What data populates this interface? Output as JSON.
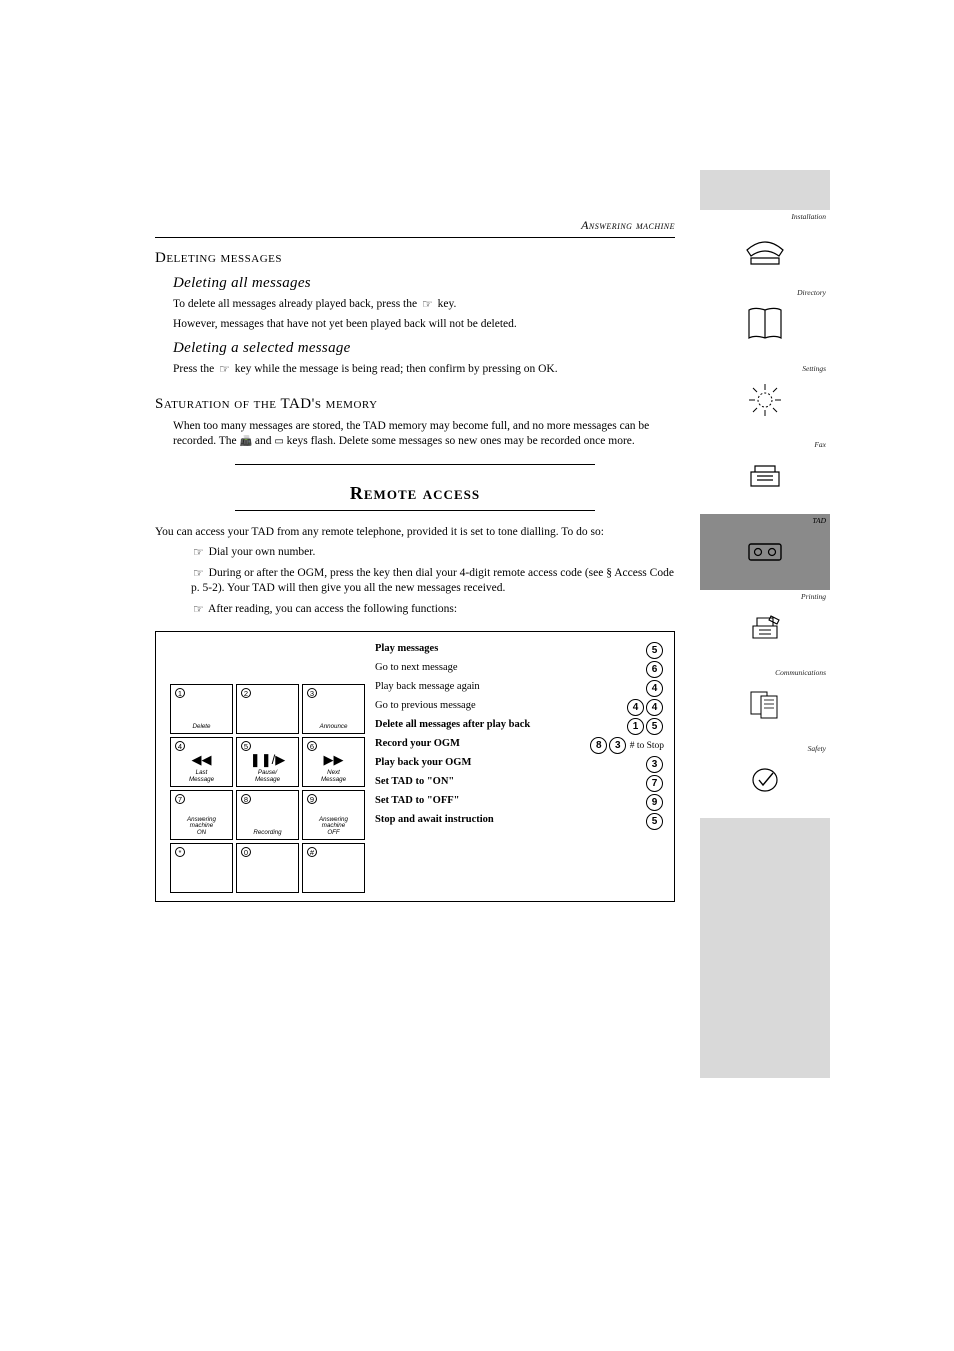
{
  "colors": {
    "bg": "#ffffff",
    "sidebar_light": "#d9d9d9",
    "sidebar_accent": "#8a8a8a",
    "text": "#000000"
  },
  "page_title": "Answering machine",
  "sidebar": {
    "items": [
      {
        "label": "Installation"
      },
      {
        "label": "Directory"
      },
      {
        "label": "Settings"
      },
      {
        "label": "Fax"
      },
      {
        "label": "TAD"
      },
      {
        "label": "Printing"
      },
      {
        "label": "Communications"
      },
      {
        "label": "Safety"
      }
    ]
  },
  "main": {
    "h_deleting": "Deleting messages",
    "h_deleting_all": "Deleting all messages",
    "deleting_all_p1": "To delete all messages already played back, press the ",
    "deleting_all_p2": " key.",
    "deleting_all_p3": "However, messages that have not yet been played back will not be deleted.",
    "h_deleting_sel": "Deleting a selected message",
    "deleting_sel_p1": "Press the ",
    "deleting_sel_p2": " key while the message is being read; then confirm by pressing on OK.",
    "h_saturation": "Saturation of the TAD's memory",
    "sat_p": "When too many messages are stored, the TAD memory may become full, and no more messages can be recorded. The   and  keys flash. Delete some messages so new ones may be recorded once more.",
    "h_remote": "Remote access",
    "remote_intro": "You can access your TAD from any remote telephone, provided it is set to tone dialling. To do so:",
    "steps": [
      "Dial your own number.",
      "During or after the OGM, press the  key then dial your 4-digit remote access code (see § Access Code p. 5-2). Your TAD will then give you all the new messages received.",
      "After reading, you can access the following functions:"
    ],
    "keypad": [
      {
        "num": "1",
        "label": "Delete",
        "glyph": ""
      },
      {
        "num": "2",
        "label": "",
        "glyph": ""
      },
      {
        "num": "3",
        "label": "Announce",
        "glyph": ""
      },
      {
        "num": "4",
        "label": "Last\nMessage",
        "glyph": "◀◀"
      },
      {
        "num": "5",
        "label": "Pause/\nMessage",
        "glyph": "❚❚/▶"
      },
      {
        "num": "6",
        "label": "Next\nMessage",
        "glyph": "▶▶"
      },
      {
        "num": "7",
        "label": "Answering\nmachine\nON",
        "glyph": ""
      },
      {
        "num": "8",
        "label": "Recording",
        "glyph": ""
      },
      {
        "num": "9",
        "label": "Answering\nmachine\nOFF",
        "glyph": ""
      },
      {
        "num": "*",
        "label": "",
        "glyph": ""
      },
      {
        "num": "0",
        "label": "",
        "glyph": ""
      },
      {
        "num": "#",
        "label": "",
        "glyph": ""
      }
    ],
    "instructions": [
      {
        "text": "Play messages",
        "keys": [
          "5"
        ],
        "bold": true
      },
      {
        "text": "Go to next message",
        "keys": [
          "6"
        ],
        "bold": false
      },
      {
        "text": "Play back message again",
        "keys": [
          "4"
        ],
        "bold": false
      },
      {
        "text": "Go to previous message",
        "keys": [
          "4",
          "4"
        ],
        "bold": false
      },
      {
        "text": "Delete all messages after play back",
        "keys": [
          "1",
          "5"
        ],
        "bold": true
      },
      {
        "text": "Record your OGM",
        "keys": [
          "8",
          "3"
        ],
        "bold": true,
        "right_note": "# to Stop"
      },
      {
        "text": "Play back your OGM",
        "keys": [
          "3"
        ],
        "bold": true
      },
      {
        "text": "Set TAD to \"ON\"",
        "keys": [
          "7"
        ],
        "bold": true
      },
      {
        "text": "Set TAD to \"OFF\"",
        "keys": [
          "9"
        ],
        "bold": true
      },
      {
        "text": "Stop and await instruction",
        "keys": [
          "5"
        ],
        "bold": true
      }
    ]
  }
}
